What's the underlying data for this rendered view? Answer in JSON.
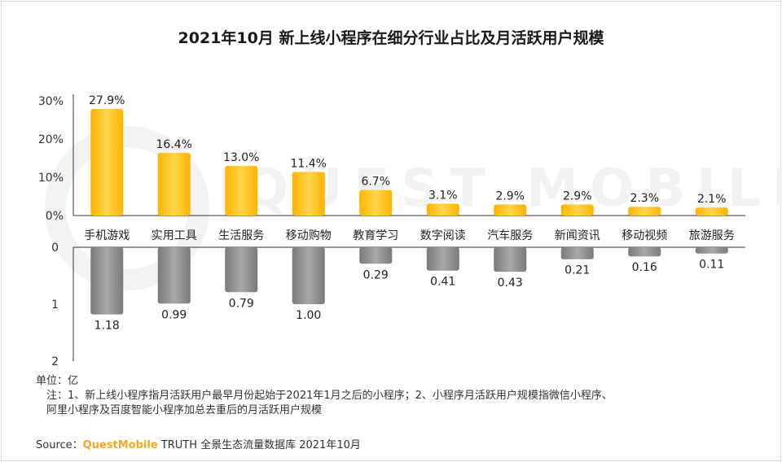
{
  "chart_data": {
    "type": "bar",
    "title": "2021年10月 新上线小程序在细分行业占比及月活跃用户规模",
    "categories": [
      "手机游戏",
      "实用工具",
      "生活服务",
      "移动购物",
      "教育学习",
      "数字阅读",
      "汽车服务",
      "新闻资讯",
      "移动视频",
      "旅游服务"
    ],
    "series": [
      {
        "name": "占比",
        "values": [
          27.9,
          16.4,
          13.0,
          11.4,
          6.7,
          3.1,
          2.9,
          2.9,
          2.3,
          2.1
        ],
        "labels": [
          "27.9%",
          "16.4%",
          "13.0%",
          "11.4%",
          "6.7%",
          "3.1%",
          "2.9%",
          "2.9%",
          "2.3%",
          "2.1%"
        ],
        "color": "#ffc000"
      },
      {
        "name": "月活跃用户规模",
        "values": [
          1.18,
          0.99,
          0.79,
          1.0,
          0.29,
          0.41,
          0.43,
          0.21,
          0.16,
          0.11
        ],
        "labels": [
          "1.18",
          "0.99",
          "0.79",
          "1.00",
          "0.29",
          "0.41",
          "0.43",
          "0.21",
          "0.16",
          "0.11"
        ],
        "color": "#8c8c8c"
      }
    ],
    "top_axis": {
      "ylim": [
        0,
        30
      ],
      "ticks": [
        "0%",
        "10%",
        "20%",
        "30%"
      ],
      "tick_values": [
        0,
        10,
        20,
        30
      ]
    },
    "bottom_axis": {
      "ylim": [
        0,
        2
      ],
      "ticks": [
        "0",
        "1",
        "2"
      ],
      "tick_values": [
        0,
        1,
        2
      ]
    }
  },
  "unit_label": "单位：亿",
  "note_line1": "注：1、新上线小程序指月活跃用户最早月份起始于2021年1月之后的小程序；2、小程序月活跃用户规模指微信小程序、",
  "note_line2": "阿里小程序及百度智能小程序加总去重后的月活跃用户规模",
  "source_prefix": "Source：",
  "source_brand": "QuestMobile",
  "source_suffix": " TRUTH 全景生态流量数据库 2021年10月",
  "watermark_text": "QUEST MOBILE",
  "colors": {
    "accent": "#ffc000",
    "gray": "#8c8c8c",
    "brand": "#f5a623"
  }
}
